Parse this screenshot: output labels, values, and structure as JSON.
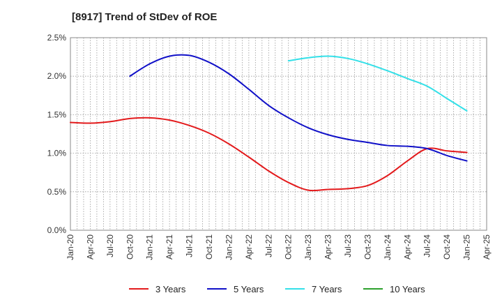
{
  "chart_data": {
    "type": "line",
    "title": "[8917]  Trend of StDev of ROE",
    "xlabel": "",
    "ylabel": "",
    "x_ticks": [
      "Jan-20",
      "Apr-20",
      "Jul-20",
      "Oct-20",
      "Jan-21",
      "Apr-21",
      "Jul-21",
      "Oct-21",
      "Jan-22",
      "Apr-22",
      "Jul-22",
      "Oct-22",
      "Jan-23",
      "Apr-23",
      "Jul-23",
      "Oct-23",
      "Jan-24",
      "Apr-24",
      "Jul-24",
      "Oct-24",
      "Jan-25",
      "Apr-25"
    ],
    "y_ticks": [
      "0.0%",
      "0.5%",
      "1.0%",
      "1.5%",
      "2.0%",
      "2.5%"
    ],
    "ylim": [
      0,
      2.5
    ],
    "grid": true,
    "legend_position": "bottom",
    "series": [
      {
        "name": "3 Years",
        "color": "#e31a1c",
        "x": [
          "Jan-20",
          "Apr-20",
          "Jul-20",
          "Oct-20",
          "Jan-21",
          "Apr-21",
          "Jul-21",
          "Oct-21",
          "Jan-22",
          "Apr-22",
          "Jul-22",
          "Oct-22",
          "Jan-23",
          "Apr-23",
          "Jul-23",
          "Oct-23",
          "Jan-24",
          "Apr-24",
          "Jul-24",
          "Oct-24",
          "Jan-25"
        ],
        "values": [
          1.4,
          1.39,
          1.41,
          1.45,
          1.46,
          1.43,
          1.36,
          1.26,
          1.12,
          0.95,
          0.77,
          0.62,
          0.52,
          0.53,
          0.54,
          0.58,
          0.71,
          0.9,
          1.06,
          1.03,
          1.01
        ]
      },
      {
        "name": "5 Years",
        "color": "#1010c8",
        "x": [
          "Oct-20",
          "Jan-21",
          "Apr-21",
          "Jul-21",
          "Oct-21",
          "Jan-22",
          "Apr-22",
          "Jul-22",
          "Oct-22",
          "Jan-23",
          "Apr-23",
          "Jul-23",
          "Oct-23",
          "Jan-24",
          "Apr-24",
          "Jul-24",
          "Oct-24",
          "Jan-25"
        ],
        "values": [
          2.0,
          2.16,
          2.26,
          2.27,
          2.18,
          2.03,
          1.83,
          1.62,
          1.46,
          1.33,
          1.24,
          1.18,
          1.14,
          1.1,
          1.09,
          1.06,
          0.97,
          0.9
        ]
      },
      {
        "name": "7 Years",
        "color": "#33e0e8",
        "x": [
          "Oct-22",
          "Jan-23",
          "Apr-23",
          "Jul-23",
          "Oct-23",
          "Jan-24",
          "Apr-24",
          "Jul-24",
          "Oct-24",
          "Jan-25"
        ],
        "values": [
          2.2,
          2.24,
          2.26,
          2.23,
          2.16,
          2.07,
          1.97,
          1.87,
          1.71,
          1.55
        ]
      },
      {
        "name": "10 Years",
        "color": "#2ca02c",
        "x": [],
        "values": []
      }
    ]
  }
}
